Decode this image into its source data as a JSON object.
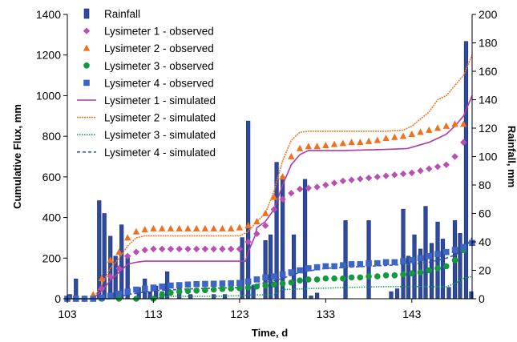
{
  "chart_data": {
    "type": "bar+scatter+line",
    "xlabel": "Time, d",
    "ylabel_left": "Cumulative Flux, mm",
    "ylabel_right": "Rainfall, mm",
    "xlim": [
      103,
      150
    ],
    "ylim_left": [
      0,
      1400
    ],
    "ylim_right": [
      0,
      200
    ],
    "x_ticks": [
      103,
      113,
      123,
      133,
      143
    ],
    "y_left_ticks": [
      0,
      200,
      400,
      600,
      800,
      1000,
      1200,
      1400
    ],
    "y_right_ticks": [
      0,
      20,
      40,
      60,
      80,
      100,
      120,
      140,
      160,
      180,
      200
    ],
    "grid": false,
    "legend_position": "top-left",
    "rainfall": {
      "name": "Rainfall",
      "color": "#2e4a9e",
      "edge_color": "#1b2f6b",
      "axis": "right",
      "x": [
        103.3,
        104.0,
        106.7,
        107.3,
        108.0,
        108.6,
        109.3,
        110.0,
        111.3,
        112.0,
        112.6,
        113.3,
        114.0,
        114.6,
        116.0,
        117.3,
        120.0,
        121.3,
        123.3,
        124.0,
        124.6,
        126.0,
        126.6,
        127.3,
        128.0,
        129.3,
        130.6,
        131.3,
        132.0,
        135.3,
        138.0,
        140.6,
        141.3,
        142.0,
        142.6,
        143.3,
        144.0,
        144.6,
        145.3,
        146.0,
        146.6,
        147.3,
        148.0,
        148.6,
        149.3,
        149.9
      ],
      "values": [
        3,
        14,
        69,
        60,
        44,
        30,
        52,
        30,
        8,
        14,
        5,
        9,
        5,
        19,
        8,
        3,
        3,
        3,
        43,
        125,
        9,
        41,
        45,
        96,
        86,
        45,
        84,
        2,
        4,
        55,
        55,
        5,
        7,
        63,
        30,
        45,
        35,
        65,
        39,
        54,
        42,
        8,
        55,
        46,
        181,
        5
      ]
    },
    "observed": [
      {
        "name": "Lysimeter 1 - observed",
        "color": "#b94fb3",
        "marker": "diamond",
        "x": [
          103,
          104,
          105,
          106,
          107,
          108,
          109,
          110,
          111,
          112,
          113,
          114,
          115,
          116,
          117,
          118,
          119,
          120,
          121,
          122,
          123,
          124,
          125,
          126,
          127,
          128,
          129,
          130,
          131,
          132,
          133,
          134,
          135,
          136,
          137,
          138,
          139,
          140,
          141,
          142,
          143,
          144,
          145,
          146,
          147,
          148,
          149
        ],
        "values": [
          0,
          0,
          0,
          5,
          50,
          110,
          150,
          210,
          230,
          240,
          245,
          245,
          245,
          245,
          245,
          245,
          245,
          245,
          245,
          245,
          245,
          280,
          320,
          360,
          440,
          490,
          520,
          540,
          545,
          550,
          560,
          570,
          580,
          585,
          590,
          595,
          600,
          605,
          610,
          615,
          620,
          630,
          640,
          650,
          660,
          700,
          770
        ]
      },
      {
        "name": "Lysimeter 2 - observed",
        "color": "#f07020",
        "marker": "triangle",
        "x": [
          104,
          106,
          107,
          108,
          109,
          110,
          111,
          112,
          113,
          114,
          115,
          116,
          117,
          118,
          119,
          120,
          121,
          122,
          123,
          124,
          125,
          126,
          127,
          128,
          129,
          130,
          131,
          132,
          133,
          134,
          135,
          136,
          137,
          138,
          139,
          140,
          141,
          142,
          143,
          144,
          145,
          146,
          147,
          148,
          149
        ],
        "values": [
          0,
          20,
          100,
          190,
          230,
          300,
          330,
          340,
          345,
          345,
          345,
          345,
          345,
          345,
          345,
          345,
          345,
          345,
          350,
          360,
          380,
          420,
          500,
          600,
          700,
          740,
          750,
          750,
          755,
          760,
          765,
          770,
          770,
          775,
          780,
          790,
          795,
          800,
          810,
          820,
          830,
          840,
          850,
          860,
          860
        ]
      },
      {
        "name": "Lysimeter 3 - observed",
        "color": "#149a3c",
        "marker": "circle",
        "x": [
          103,
          105,
          107,
          109,
          111,
          113,
          114,
          115,
          116,
          117,
          118,
          119,
          120,
          121,
          122,
          123,
          124,
          125,
          126,
          127,
          128,
          129,
          130,
          131,
          132,
          133,
          134,
          135,
          136,
          137,
          138,
          139,
          140,
          141,
          142,
          143,
          144,
          145,
          146,
          147,
          148,
          149
        ],
        "values": [
          0,
          0,
          0,
          0,
          0,
          0,
          20,
          30,
          35,
          38,
          40,
          42,
          45,
          48,
          50,
          52,
          55,
          60,
          65,
          70,
          75,
          80,
          90,
          95,
          95,
          100,
          100,
          100,
          105,
          105,
          110,
          110,
          115,
          115,
          120,
          125,
          130,
          140,
          150,
          160,
          190,
          240
        ]
      },
      {
        "name": "Lysimeter 4  - observed",
        "color": "#3d66c4",
        "marker": "square",
        "x": [
          103,
          104,
          105,
          106,
          107,
          108,
          109,
          110,
          111,
          112,
          113,
          114,
          115,
          116,
          117,
          118,
          119,
          120,
          121,
          122,
          123,
          124,
          125,
          126,
          127,
          128,
          129,
          130,
          131,
          132,
          133,
          134,
          135,
          136,
          137,
          138,
          139,
          140,
          141,
          142,
          143,
          144,
          145,
          146,
          147,
          148,
          149,
          150
        ],
        "values": [
          0,
          0,
          0,
          0,
          5,
          15,
          25,
          35,
          45,
          50,
          55,
          60,
          65,
          67,
          70,
          72,
          73,
          74,
          75,
          76,
          78,
          85,
          95,
          105,
          110,
          120,
          130,
          140,
          150,
          155,
          160,
          160,
          165,
          170,
          170,
          175,
          175,
          180,
          180,
          185,
          190,
          200,
          210,
          220,
          230,
          240,
          255,
          275
        ]
      }
    ],
    "simulated": [
      {
        "name": "Lysimeter 1 - simulated",
        "color": "#b03aa8",
        "dash": "solid",
        "x": [
          103,
          106,
          107,
          108,
          109,
          110,
          111,
          112,
          113,
          118,
          121,
          123,
          123.7,
          124,
          124.8,
          125,
          126,
          127,
          128,
          129,
          130,
          131,
          132,
          135,
          140,
          142.5,
          145,
          147,
          148,
          149,
          150
        ],
        "values": [
          0,
          0,
          40,
          90,
          130,
          170,
          180,
          185,
          185,
          185,
          185,
          185,
          185,
          230,
          310,
          350,
          380,
          440,
          560,
          660,
          710,
          730,
          730,
          730,
          735,
          740,
          770,
          810,
          850,
          900,
          1000
        ]
      },
      {
        "name": "Lysimeter 2 - simulated",
        "color": "#f07828",
        "dash": "dense",
        "x": [
          103,
          106,
          107,
          108,
          109,
          110,
          111,
          112,
          113,
          118,
          121,
          123,
          124,
          125,
          126,
          127,
          128,
          129,
          130,
          131,
          132,
          135,
          140,
          142,
          143,
          145,
          146,
          147,
          148,
          149,
          150
        ],
        "values": [
          0,
          0,
          70,
          150,
          200,
          260,
          300,
          310,
          310,
          310,
          310,
          310,
          330,
          380,
          420,
          530,
          680,
          780,
          820,
          825,
          825,
          825,
          825,
          830,
          850,
          920,
          980,
          1000,
          1050,
          1100,
          1200
        ]
      },
      {
        "name": "Lysimeter 3 - simulated",
        "color": "#1a9c4a",
        "dash": "dotted",
        "x": [
          103,
          113,
          114,
          115,
          120,
          123,
          124,
          127,
          128,
          131,
          135,
          140,
          143,
          147,
          148,
          149,
          150
        ],
        "values": [
          0,
          0,
          10,
          12,
          12,
          15,
          18,
          20,
          45,
          50,
          55,
          60,
          60,
          60,
          75,
          100,
          110
        ]
      },
      {
        "name": "Lysimeter 4 - simulated",
        "color": "#3456b8",
        "dash": "dashed",
        "x": [
          103,
          108,
          110,
          113,
          118,
          123,
          125,
          128,
          130,
          133,
          138,
          143,
          145,
          147,
          148,
          149,
          150
        ],
        "values": [
          0,
          0,
          20,
          40,
          50,
          55,
          70,
          100,
          130,
          150,
          160,
          170,
          180,
          200,
          215,
          240,
          300
        ]
      }
    ]
  }
}
